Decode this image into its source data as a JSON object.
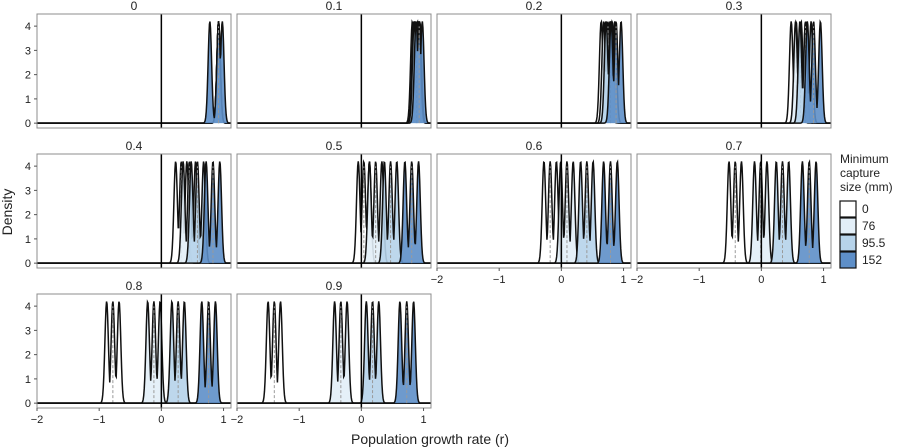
{
  "chart_data": {
    "type": "area",
    "xlabel": "Population growth rate (r)",
    "ylabel": "Density",
    "xlim": [
      -2,
      1.12
    ],
    "ylim": [
      -0.2,
      4.5
    ],
    "x_ticks": [
      -2,
      -1,
      0,
      1
    ],
    "x_tick_labels": [
      "−2",
      "−1",
      "0",
      "1"
    ],
    "y_ticks": [
      0,
      1,
      2,
      3,
      4
    ],
    "y_tick_labels": [
      "0",
      "1",
      "2",
      "3",
      "4"
    ],
    "reference_line_x": 0,
    "peak_sd": 0.028,
    "legend": {
      "title_lines": [
        "Minimum",
        "capture",
        "size (mm)"
      ],
      "position": "right",
      "entries": [
        {
          "label": "0",
          "color": "#ffffff"
        },
        {
          "label": "76",
          "color": "#e2eef7"
        },
        {
          "label": "95.5",
          "color": "#b6d3ea"
        },
        {
          "label": "152",
          "color": "#5e8fc8"
        }
      ]
    },
    "panels": [
      {
        "title": "0",
        "groups": [
          {
            "size": "0",
            "peaks": [
              0.92
            ]
          },
          {
            "size": "76",
            "peaks": [
              0.92
            ]
          },
          {
            "size": "95.5",
            "peaks": [
              0.92
            ]
          },
          {
            "size": "152",
            "peaks": [
              0.78,
              0.92,
              0.98
            ]
          }
        ]
      },
      {
        "title": "0.1",
        "groups": [
          {
            "size": "0",
            "peaks": [
              0.82,
              0.86,
              0.9,
              0.94
            ]
          },
          {
            "size": "76",
            "peaks": [
              0.84,
              0.88,
              0.92
            ]
          },
          {
            "size": "95.5",
            "peaks": [
              0.85,
              0.89,
              0.93
            ]
          },
          {
            "size": "152",
            "peaks": [
              0.88,
              0.93,
              0.98
            ]
          }
        ]
      },
      {
        "title": "0.2",
        "groups": [
          {
            "size": "0",
            "peaks": [
              0.64,
              0.71,
              0.78
            ]
          },
          {
            "size": "76",
            "peaks": [
              0.68,
              0.75,
              0.82
            ]
          },
          {
            "size": "95.5",
            "peaks": [
              0.72,
              0.79,
              0.86
            ]
          },
          {
            "size": "152",
            "peaks": [
              0.8,
              0.88,
              0.96
            ]
          }
        ]
      },
      {
        "title": "0.3",
        "groups": [
          {
            "size": "0",
            "peaks": [
              0.48,
              0.56,
              0.64
            ]
          },
          {
            "size": "76",
            "peaks": [
              0.55,
              0.63,
              0.71
            ]
          },
          {
            "size": "95.5",
            "peaks": [
              0.62,
              0.71,
              0.8
            ]
          },
          {
            "size": "152",
            "peaks": [
              0.74,
              0.84,
              0.95
            ]
          }
        ]
      },
      {
        "title": "0.4",
        "groups": [
          {
            "size": "0",
            "peaks": [
              0.23,
              0.32,
              0.41
            ]
          },
          {
            "size": "76",
            "peaks": [
              0.35,
              0.45,
              0.55
            ]
          },
          {
            "size": "95.5",
            "peaks": [
              0.48,
              0.58,
              0.68
            ]
          },
          {
            "size": "152",
            "peaks": [
              0.72,
              0.83,
              0.94
            ]
          }
        ]
      },
      {
        "title": "0.5",
        "groups": [
          {
            "size": "0",
            "peaks": [
              -0.05,
              0.04,
              0.13
            ]
          },
          {
            "size": "76",
            "peaks": [
              0.13,
              0.23,
              0.33
            ]
          },
          {
            "size": "95.5",
            "peaks": [
              0.37,
              0.47,
              0.57
            ]
          },
          {
            "size": "152",
            "peaks": [
              0.7,
              0.81,
              0.92
            ]
          }
        ]
      },
      {
        "title": "0.6",
        "groups": [
          {
            "size": "0",
            "peaks": [
              -0.28,
              -0.18,
              -0.08
            ]
          },
          {
            "size": "76",
            "peaks": [
              -0.01,
              0.09,
              0.19
            ]
          },
          {
            "size": "95.5",
            "peaks": [
              0.31,
              0.41,
              0.51
            ]
          },
          {
            "size": "152",
            "peaks": [
              0.68,
              0.79,
              0.9
            ]
          }
        ]
      },
      {
        "title": "0.7",
        "groups": [
          {
            "size": "0",
            "peaks": [
              -0.52,
              -0.42,
              -0.32
            ]
          },
          {
            "size": "76",
            "peaks": [
              -0.11,
              -0.01,
              0.09
            ]
          },
          {
            "size": "95.5",
            "peaks": [
              0.24,
              0.34,
              0.44
            ]
          },
          {
            "size": "152",
            "peaks": [
              0.66,
              0.77,
              0.88
            ]
          }
        ]
      },
      {
        "title": "0.8",
        "groups": [
          {
            "size": "0",
            "peaks": [
              -0.88,
              -0.78,
              -0.68
            ]
          },
          {
            "size": "76",
            "peaks": [
              -0.22,
              -0.12,
              -0.02
            ]
          },
          {
            "size": "95.5",
            "peaks": [
              0.17,
              0.27,
              0.37
            ]
          },
          {
            "size": "152",
            "peaks": [
              0.65,
              0.76,
              0.87
            ]
          }
        ]
      },
      {
        "title": "0.9",
        "groups": [
          {
            "size": "0",
            "peaks": [
              -1.5,
              -1.4,
              -1.3
            ]
          },
          {
            "size": "76",
            "peaks": [
              -0.43,
              -0.33,
              -0.23
            ]
          },
          {
            "size": "95.5",
            "peaks": [
              0.08,
              0.18,
              0.28
            ]
          },
          {
            "size": "152",
            "peaks": [
              0.62,
              0.73,
              0.84
            ]
          }
        ]
      }
    ]
  }
}
